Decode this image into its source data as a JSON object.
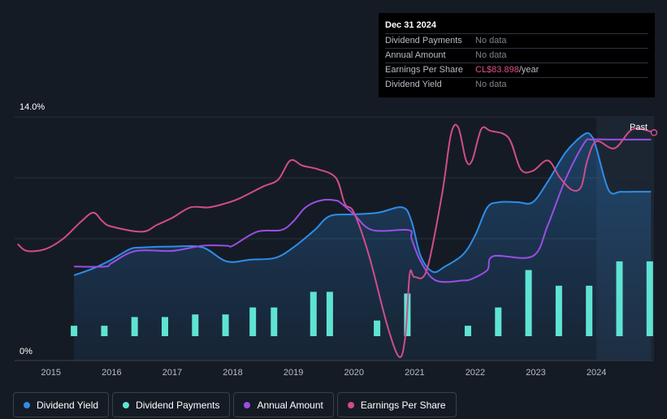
{
  "tooltip": {
    "date": "Dec 31 2024",
    "rows": [
      {
        "label": "Dividend Payments",
        "value": "No data"
      },
      {
        "label": "Annual Amount",
        "value": "No data"
      },
      {
        "label": "Earnings Per Share",
        "value": "CL$83.898",
        "unit": "/year"
      },
      {
        "label": "Dividend Yield",
        "value": "No data"
      }
    ]
  },
  "legend": [
    {
      "label": "Dividend Yield",
      "color": "#2e8de8"
    },
    {
      "label": "Dividend Payments",
      "color": "#5fe3d3"
    },
    {
      "label": "Annual Amount",
      "color": "#9b4ee6"
    },
    {
      "label": "Earnings Per Share",
      "color": "#d04d8a"
    }
  ],
  "chart_data": {
    "type": "line",
    "y_axis": {
      "min_label": "0%",
      "max_label": "14.0%",
      "ylim": [
        0,
        14
      ]
    },
    "x_ticks": [
      "2015",
      "2016",
      "2017",
      "2018",
      "2019",
      "2020",
      "2021",
      "2022",
      "2023",
      "2024"
    ],
    "xlim": [
      2014.4,
      2024.95
    ],
    "past_label": "Past",
    "past_start": 2024.0,
    "series": [
      {
        "name": "Dividend Yield",
        "color": "#2e8de8",
        "area": true,
        "x": [
          2015.38,
          2015.7,
          2016.0,
          2016.3,
          2016.5,
          2017.0,
          2017.5,
          2017.9,
          2018.3,
          2018.7,
          2019.0,
          2019.35,
          2019.6,
          2020.0,
          2020.4,
          2020.8,
          2020.95,
          2021.1,
          2021.3,
          2021.5,
          2021.8,
          2022.0,
          2022.2,
          2022.4,
          2022.7,
          2022.95,
          2023.2,
          2023.5,
          2023.8,
          2023.92,
          2024.0,
          2024.2,
          2024.4,
          2024.6,
          2024.9
        ],
        "values": [
          4.9,
          5.3,
          5.8,
          6.4,
          6.5,
          6.55,
          6.5,
          5.7,
          5.8,
          5.9,
          6.5,
          7.5,
          8.3,
          8.4,
          8.5,
          8.8,
          8.0,
          6.0,
          5.1,
          5.4,
          6.1,
          7.2,
          8.8,
          9.1,
          9.1,
          9.1,
          10.3,
          12.0,
          13.0,
          12.9,
          12.2,
          9.8,
          9.7,
          9.7,
          9.7
        ]
      },
      {
        "name": "Annual Amount",
        "color": "#9b4ee6",
        "x": [
          2015.38,
          2015.9,
          2016.0,
          2016.4,
          2017.0,
          2017.5,
          2017.9,
          2018.0,
          2018.4,
          2018.8,
          2019.0,
          2019.2,
          2019.45,
          2019.7,
          2019.8,
          2020.0,
          2020.3,
          2020.9,
          2020.95,
          2021.1,
          2021.35,
          2021.8,
          2021.95,
          2022.2,
          2022.3,
          2022.95,
          2023.2,
          2023.5,
          2023.8,
          2023.92,
          2024.2,
          2024.9
        ],
        "values": [
          5.4,
          5.4,
          5.6,
          6.3,
          6.3,
          6.6,
          6.6,
          6.6,
          7.4,
          7.5,
          8.0,
          8.8,
          9.2,
          9.2,
          9.0,
          8.4,
          7.5,
          7.5,
          7.0,
          5.7,
          4.6,
          4.6,
          4.7,
          5.2,
          6.0,
          6.0,
          7.8,
          10.5,
          12.5,
          12.7,
          12.7,
          12.7
        ]
      },
      {
        "name": "Earnings Per Share",
        "color": "#d04d8a",
        "x": [
          2014.45,
          2014.6,
          2014.9,
          2015.2,
          2015.5,
          2015.7,
          2015.85,
          2016.0,
          2016.5,
          2016.75,
          2017.0,
          2017.3,
          2017.6,
          2017.85,
          2018.1,
          2018.5,
          2018.75,
          2018.95,
          2019.15,
          2019.4,
          2019.7,
          2019.85,
          2020.0,
          2020.25,
          2020.55,
          2020.75,
          2020.85,
          2020.92,
          2021.0,
          2021.2,
          2021.45,
          2021.6,
          2021.72,
          2021.85,
          2021.95,
          2022.1,
          2022.25,
          2022.55,
          2022.75,
          2022.95,
          2023.2,
          2023.4,
          2023.6,
          2023.75,
          2023.85,
          2024.0,
          2024.3,
          2024.6,
          2024.95
        ],
        "values": [
          6.7,
          6.3,
          6.4,
          7.0,
          8.0,
          8.5,
          8.0,
          7.7,
          7.4,
          7.8,
          8.2,
          8.8,
          8.8,
          9.0,
          9.3,
          10.0,
          10.4,
          11.5,
          11.2,
          11.0,
          10.5,
          9.0,
          8.5,
          6.0,
          2.0,
          0.2,
          1.5,
          5.0,
          4.8,
          5.2,
          9.5,
          13.0,
          13.4,
          11.5,
          11.5,
          13.3,
          13.2,
          12.8,
          11.0,
          10.9,
          11.5,
          10.5,
          9.8,
          10.0,
          11.5,
          12.6,
          12.2,
          13.3,
          13.1
        ]
      }
    ],
    "bars": {
      "name": "Dividend Payments",
      "color": "#5fe3d3",
      "x": [
        2015.38,
        2015.88,
        2016.38,
        2016.88,
        2017.38,
        2017.88,
        2018.33,
        2018.68,
        2019.33,
        2019.6,
        2020.38,
        2020.88,
        2021.38,
        2021.88,
        2022.38,
        2022.88,
        2023.38,
        2023.88,
        2024.38,
        2024.88
      ],
      "values": [
        2.0,
        2.0,
        2.5,
        2.5,
        2.65,
        2.65,
        3.05,
        3.05,
        3.95,
        3.95,
        2.3,
        3.85,
        1.2,
        2.0,
        3.05,
        5.2,
        4.3,
        4.3,
        5.7,
        5.7
      ]
    }
  }
}
